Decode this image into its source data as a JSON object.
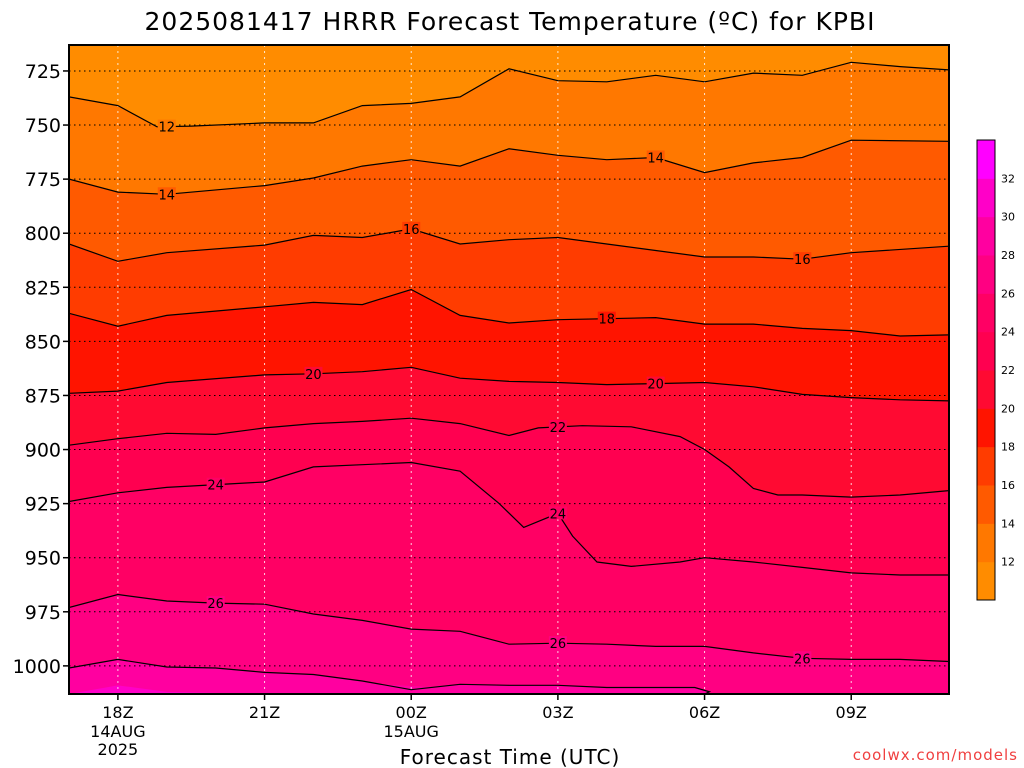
{
  "chart_data": {
    "type": "heatmap",
    "title": "2025081417 HRRR Forecast Temperature (ºC) for KPBI",
    "xlabel": "Forecast Time (UTC)",
    "ylabel": "",
    "credit": "coolwx.com/models",
    "y_ticks": [
      725,
      750,
      775,
      800,
      825,
      850,
      875,
      900,
      925,
      950,
      975,
      1000
    ],
    "y_range_hPa": [
      713,
      1013
    ],
    "y_scale": "linear-pressure",
    "x_ticks": [
      {
        "hour": 18,
        "label": "18Z",
        "sub": [
          "14AUG",
          "2025"
        ]
      },
      {
        "hour": 21,
        "label": "21Z",
        "sub": []
      },
      {
        "hour": 24,
        "label": "00Z",
        "sub": [
          "15AUG"
        ]
      },
      {
        "hour": 27,
        "label": "03Z",
        "sub": []
      },
      {
        "hour": 30,
        "label": "06Z",
        "sub": []
      },
      {
        "hour": 33,
        "label": "09Z",
        "sub": []
      }
    ],
    "x_range_hour_utc": [
      17,
      35
    ],
    "grid": "dotted",
    "colorbar": {
      "labels": [
        12,
        14,
        16,
        18,
        20,
        22,
        24,
        26,
        28,
        30,
        32
      ],
      "bands": [
        {
          "upper": 12,
          "color": "#ff8c00"
        },
        {
          "upper": 14,
          "color": "#ff7800"
        },
        {
          "upper": 16,
          "color": "#ff5a00"
        },
        {
          "upper": 18,
          "color": "#ff3c00"
        },
        {
          "upper": 20,
          "color": "#ff1400"
        },
        {
          "upper": 22,
          "color": "#ff0a32"
        },
        {
          "upper": 24,
          "color": "#ff0050"
        },
        {
          "upper": 26,
          "color": "#ff0064"
        },
        {
          "upper": 28,
          "color": "#ff0082"
        },
        {
          "upper": 30,
          "color": "#ff00a0"
        },
        {
          "upper": 32,
          "color": "#ff00c8"
        },
        {
          "upper": 99,
          "color": "#ff00ff"
        }
      ]
    },
    "contour_interval": 2,
    "contours": [
      {
        "level": 12,
        "labels": [
          19.0
        ],
        "points": [
          [
            17,
            737
          ],
          [
            18,
            741
          ],
          [
            18.8,
            750.8
          ],
          [
            19.5,
            750.5
          ],
          [
            21,
            749
          ],
          [
            22,
            749
          ],
          [
            23,
            741
          ],
          [
            24,
            740
          ],
          [
            25,
            737
          ],
          [
            26,
            724
          ],
          [
            27,
            729.5
          ],
          [
            28,
            730
          ],
          [
            29,
            727
          ],
          [
            30,
            730
          ],
          [
            31,
            726
          ],
          [
            32,
            727
          ],
          [
            33,
            721
          ],
          [
            34,
            723
          ],
          [
            35,
            724.5
          ]
        ]
      },
      {
        "level": 14,
        "labels": [
          19.0,
          29.0
        ],
        "points": [
          [
            17,
            775
          ],
          [
            18,
            781
          ],
          [
            19,
            782
          ],
          [
            21,
            778
          ],
          [
            22,
            774.5
          ],
          [
            23,
            769
          ],
          [
            24,
            766
          ],
          [
            25,
            769
          ],
          [
            26,
            761
          ],
          [
            27,
            764
          ],
          [
            28,
            766
          ],
          [
            29,
            765
          ],
          [
            30,
            772
          ],
          [
            31,
            767.5
          ],
          [
            32,
            765
          ],
          [
            33,
            757
          ],
          [
            35,
            757.5
          ]
        ]
      },
      {
        "level": 16,
        "labels": [
          24.0,
          32.0
        ],
        "points": [
          [
            17,
            805
          ],
          [
            18,
            813
          ],
          [
            19,
            809
          ],
          [
            21,
            805.5
          ],
          [
            22,
            801
          ],
          [
            23,
            802
          ],
          [
            24,
            798
          ],
          [
            25,
            805
          ],
          [
            26,
            803
          ],
          [
            27,
            802
          ],
          [
            28,
            805
          ],
          [
            29,
            808
          ],
          [
            30,
            811
          ],
          [
            31,
            811
          ],
          [
            32,
            812
          ],
          [
            33,
            809
          ],
          [
            35,
            806
          ]
        ]
      },
      {
        "level": 18,
        "labels": [
          28.0
        ],
        "points": [
          [
            17,
            837
          ],
          [
            18,
            843
          ],
          [
            19,
            838
          ],
          [
            21,
            834
          ],
          [
            22,
            832
          ],
          [
            23,
            833
          ],
          [
            24,
            826
          ],
          [
            25,
            838
          ],
          [
            26,
            841.5
          ],
          [
            27,
            840
          ],
          [
            28,
            839.5
          ],
          [
            29,
            839
          ],
          [
            30,
            842
          ],
          [
            31,
            842
          ],
          [
            32,
            844
          ],
          [
            33,
            845
          ],
          [
            34,
            847.5
          ],
          [
            35,
            847
          ]
        ]
      },
      {
        "level": 20,
        "labels": [
          22.0,
          29.0
        ],
        "points": [
          [
            17,
            874
          ],
          [
            18,
            873
          ],
          [
            19,
            869
          ],
          [
            21,
            865.5
          ],
          [
            22,
            865
          ],
          [
            23,
            864
          ],
          [
            24,
            862
          ],
          [
            25,
            867
          ],
          [
            26,
            868.5
          ],
          [
            27,
            869
          ],
          [
            28,
            870
          ],
          [
            29,
            869.5
          ],
          [
            30,
            869
          ],
          [
            31,
            871
          ],
          [
            32,
            874.5
          ],
          [
            33,
            876
          ],
          [
            34,
            877
          ],
          [
            35,
            877.5
          ]
        ]
      },
      {
        "level": 22,
        "labels": [
          27.0
        ],
        "points": [
          [
            17,
            898
          ],
          [
            18,
            895
          ],
          [
            19,
            892.5
          ],
          [
            20,
            893
          ],
          [
            21,
            890
          ],
          [
            22,
            888
          ],
          [
            23,
            887
          ],
          [
            24,
            885.5
          ],
          [
            25,
            888
          ],
          [
            26,
            893.5
          ],
          [
            26.6,
            890
          ],
          [
            27.5,
            889
          ],
          [
            28.5,
            889.5
          ],
          [
            29.5,
            894
          ],
          [
            30,
            900
          ],
          [
            30.5,
            908
          ],
          [
            31,
            918
          ],
          [
            31.5,
            921
          ],
          [
            32,
            921
          ],
          [
            33,
            922
          ],
          [
            34,
            921
          ],
          [
            35,
            919
          ]
        ]
      },
      {
        "level": 24,
        "labels": [
          20.0,
          27.0
        ],
        "points": [
          [
            17,
            924
          ],
          [
            18,
            920
          ],
          [
            19,
            917.5
          ],
          [
            21,
            915
          ],
          [
            22,
            908
          ],
          [
            23,
            907
          ],
          [
            24,
            906
          ],
          [
            25,
            910
          ],
          [
            25.8,
            925
          ],
          [
            26.3,
            936
          ],
          [
            27,
            929.5
          ],
          [
            27.3,
            940
          ],
          [
            27.8,
            952
          ],
          [
            28.5,
            954
          ],
          [
            29.5,
            952
          ],
          [
            30,
            950
          ],
          [
            31,
            952
          ],
          [
            32,
            954.5
          ],
          [
            33,
            957
          ],
          [
            34,
            958
          ],
          [
            35,
            958
          ]
        ]
      },
      {
        "level": 26,
        "labels": [
          20.0,
          27.0,
          32.0
        ],
        "points": [
          [
            17,
            973
          ],
          [
            18,
            967
          ],
          [
            19,
            970
          ],
          [
            20,
            971
          ],
          [
            21,
            971.5
          ],
          [
            22,
            976
          ],
          [
            23,
            979
          ],
          [
            24,
            983
          ],
          [
            25,
            984
          ],
          [
            26,
            990
          ],
          [
            27,
            989.5
          ],
          [
            28,
            990
          ],
          [
            29,
            991
          ],
          [
            30,
            991
          ],
          [
            31,
            994
          ],
          [
            32,
            996.5
          ],
          [
            33,
            997
          ],
          [
            34,
            997
          ],
          [
            35,
            998
          ]
        ]
      },
      {
        "level": 28,
        "labels": [],
        "points": [
          [
            17,
            1001
          ],
          [
            18,
            997
          ],
          [
            19,
            1000.5
          ],
          [
            20,
            1001
          ],
          [
            21,
            1003
          ],
          [
            22,
            1004
          ],
          [
            23,
            1007
          ],
          [
            24,
            1011
          ],
          [
            25,
            1008.5
          ],
          [
            26,
            1009
          ],
          [
            27,
            1009
          ],
          [
            28,
            1010
          ],
          [
            29,
            1010
          ],
          [
            29.8,
            1010
          ],
          [
            30.1,
            1012
          ],
          [
            30,
            1013
          ],
          [
            29,
            1014
          ],
          [
            28,
            1014
          ]
        ]
      },
      {
        "level": 30,
        "labels": [],
        "points": [
          [
            17,
            1013
          ],
          [
            18,
            1014
          ]
        ]
      }
    ],
    "surface_color": "#a0522d",
    "surface_hPa": 1014
  }
}
